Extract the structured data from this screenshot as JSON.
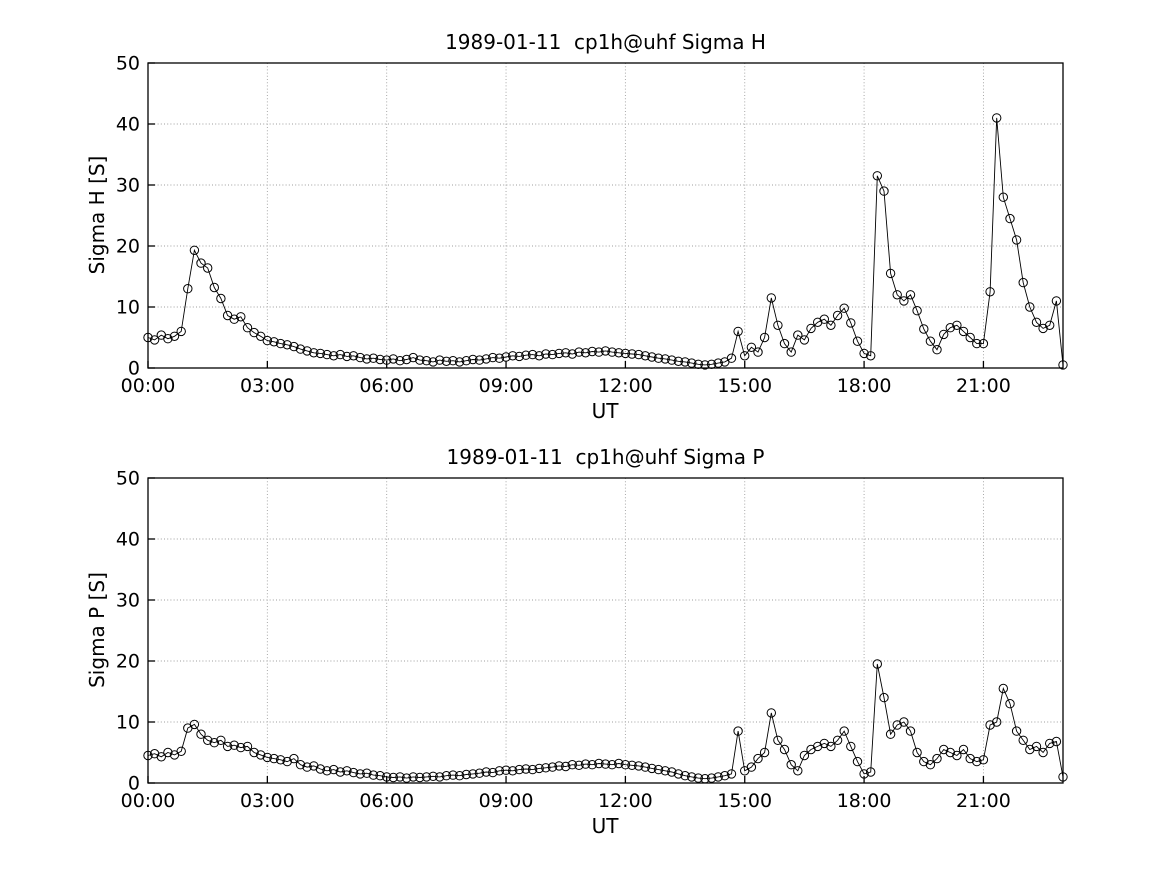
{
  "figure": {
    "background": "#ffffff",
    "axis_color": "#000000",
    "grid_color": "#9e9e9e",
    "series_color": "#000000",
    "marker": "open-circle"
  },
  "chart_data": [
    {
      "type": "line",
      "title": "1989-01-11  cp1h@uhf Sigma H",
      "xlabel": "UT",
      "ylabel": "Sigma H [S]",
      "legend": null,
      "grid": true,
      "ylim": [
        0,
        50
      ],
      "yticks": [
        0,
        10,
        20,
        30,
        40,
        50
      ],
      "xlim_minutes": [
        0,
        1380
      ],
      "xticks_minutes": [
        0,
        180,
        360,
        540,
        720,
        900,
        1080,
        1260
      ],
      "xtick_labels": [
        "00:00",
        "03:00",
        "06:00",
        "09:00",
        "12:00",
        "15:00",
        "18:00",
        "21:00"
      ],
      "x_start_minutes": 0,
      "x_step_minutes": 10,
      "values": [
        5.0,
        4.6,
        5.4,
        4.8,
        5.2,
        6.0,
        13.0,
        19.3,
        17.2,
        16.4,
        13.2,
        11.4,
        8.6,
        8.0,
        8.4,
        6.6,
        5.8,
        5.2,
        4.5,
        4.3,
        4.0,
        3.8,
        3.5,
        3.1,
        2.8,
        2.5,
        2.4,
        2.2,
        2.0,
        2.2,
        1.9,
        2.0,
        1.7,
        1.5,
        1.6,
        1.4,
        1.3,
        1.5,
        1.2,
        1.4,
        1.7,
        1.3,
        1.2,
        1.0,
        1.3,
        1.1,
        1.2,
        1.0,
        1.2,
        1.4,
        1.3,
        1.5,
        1.7,
        1.6,
        1.8,
        2.0,
        1.9,
        2.1,
        2.2,
        2.0,
        2.3,
        2.2,
        2.4,
        2.5,
        2.3,
        2.6,
        2.5,
        2.7,
        2.6,
        2.8,
        2.6,
        2.5,
        2.4,
        2.3,
        2.2,
        2.0,
        1.8,
        1.6,
        1.5,
        1.3,
        1.1,
        1.0,
        0.8,
        0.6,
        0.5,
        0.6,
        0.8,
        1.0,
        1.6,
        6.0,
        2.0,
        3.4,
        2.6,
        5.0,
        11.5,
        7.0,
        4.0,
        2.6,
        5.4,
        4.6,
        6.5,
        7.5,
        8.0,
        7.0,
        8.6,
        9.8,
        7.4,
        4.4,
        2.4,
        2.0,
        31.5,
        29.0,
        15.5,
        12.0,
        11.0,
        12.0,
        9.4,
        6.4,
        4.4,
        3.0,
        5.5,
        6.6,
        7.0,
        6.0,
        5.0,
        4.0,
        4.0,
        12.5,
        41.0,
        28.0,
        24.5,
        21.0,
        14.0,
        10.0,
        7.5,
        6.5,
        7.0,
        11.0,
        0.5
      ]
    },
    {
      "type": "line",
      "title": "1989-01-11  cp1h@uhf Sigma P",
      "xlabel": "UT",
      "ylabel": "Sigma P [S]",
      "legend": null,
      "grid": true,
      "ylim": [
        0,
        50
      ],
      "yticks": [
        0,
        10,
        20,
        30,
        40,
        50
      ],
      "xlim_minutes": [
        0,
        1380
      ],
      "xticks_minutes": [
        0,
        180,
        360,
        540,
        720,
        900,
        1080,
        1260
      ],
      "xtick_labels": [
        "00:00",
        "03:00",
        "06:00",
        "09:00",
        "12:00",
        "15:00",
        "18:00",
        "21:00"
      ],
      "x_start_minutes": 0,
      "x_step_minutes": 10,
      "values": [
        4.5,
        4.8,
        4.3,
        5.0,
        4.6,
        5.2,
        9.0,
        9.6,
        8.0,
        7.0,
        6.6,
        7.0,
        6.0,
        6.2,
        5.8,
        6.0,
        5.0,
        4.6,
        4.2,
        4.0,
        3.8,
        3.5,
        4.0,
        3.0,
        2.6,
        2.8,
        2.3,
        2.0,
        2.2,
        1.8,
        2.0,
        1.7,
        1.5,
        1.6,
        1.3,
        1.2,
        1.0,
        0.9,
        1.0,
        0.8,
        1.0,
        0.9,
        1.0,
        1.1,
        1.0,
        1.2,
        1.3,
        1.2,
        1.4,
        1.5,
        1.6,
        1.8,
        1.7,
        2.0,
        2.1,
        2.0,
        2.2,
        2.3,
        2.2,
        2.4,
        2.5,
        2.6,
        2.8,
        2.7,
        3.0,
        2.9,
        3.1,
        3.0,
        3.2,
        3.1,
        3.0,
        3.2,
        3.0,
        2.9,
        2.8,
        2.6,
        2.4,
        2.2,
        2.0,
        1.8,
        1.5,
        1.2,
        1.0,
        0.8,
        0.7,
        0.8,
        1.0,
        1.2,
        1.5,
        8.5,
        2.0,
        2.6,
        4.0,
        5.0,
        11.5,
        7.0,
        5.5,
        3.0,
        2.0,
        4.5,
        5.5,
        6.0,
        6.5,
        6.0,
        7.0,
        8.5,
        6.0,
        3.5,
        1.5,
        1.8,
        19.5,
        14.0,
        8.0,
        9.5,
        10.0,
        8.5,
        5.0,
        3.5,
        3.0,
        4.0,
        5.5,
        5.0,
        4.5,
        5.5,
        4.0,
        3.5,
        3.8,
        9.5,
        10.0,
        15.5,
        13.0,
        8.5,
        7.0,
        5.5,
        6.0,
        5.0,
        6.5,
        6.8,
        1.0
      ]
    }
  ]
}
